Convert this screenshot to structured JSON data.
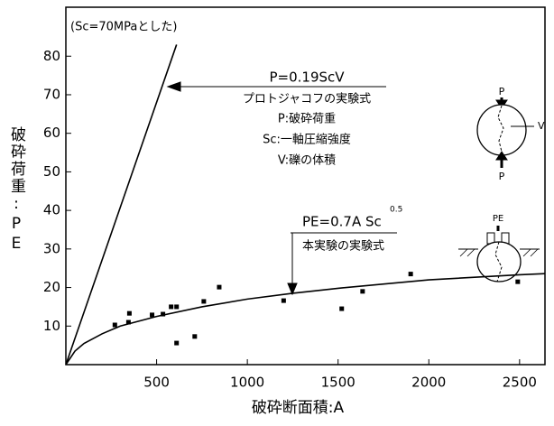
{
  "chart_data": {
    "type": "scatter",
    "x_label": "破砕断面積:A",
    "y_label": "破砕荷重:PE",
    "xlim": [
      0,
      2640
    ],
    "ylim": [
      0,
      92.7
    ],
    "xticks": [
      500,
      1000,
      1500,
      2000,
      2500
    ],
    "yticks": [
      10,
      20,
      30,
      40,
      50,
      60,
      70,
      80
    ],
    "color": "#000000",
    "points": {
      "x": [
        270,
        345,
        350,
        475,
        535,
        580,
        610,
        610,
        710,
        760,
        845,
        1200,
        1520,
        1635,
        1900,
        2490
      ],
      "y": [
        10.3,
        11.0,
        13.3,
        12.9,
        13.1,
        15.0,
        15.0,
        5.6,
        7.3,
        16.4,
        20.1,
        16.6,
        14.5,
        19.0,
        23.5,
        21.5
      ]
    },
    "lines": [
      {
        "x": [
          0,
          610
        ],
        "y": [
          0,
          83
        ]
      },
      {
        "x": [
          0,
          50,
          100,
          200,
          300,
          500,
          750,
          1000,
          1250,
          1500,
          2000,
          2500,
          2640
        ],
        "y": [
          0,
          3.5,
          5.5,
          8,
          10,
          12.5,
          15,
          17,
          18.5,
          19.8,
          22,
          23.3,
          23.6
        ]
      }
    ],
    "annotations": [
      "(Sc=70MPaとした)",
      "P=0.19ScV",
      "プロトジャコフの実験式",
      "P:破砕荷重",
      "Sc:一軸圧縮強度",
      "V:礫の体積",
      "PE=0.7A  Sc",
      "0.5",
      "本実験の実験式",
      "P",
      "V",
      "P",
      "PE"
    ]
  }
}
